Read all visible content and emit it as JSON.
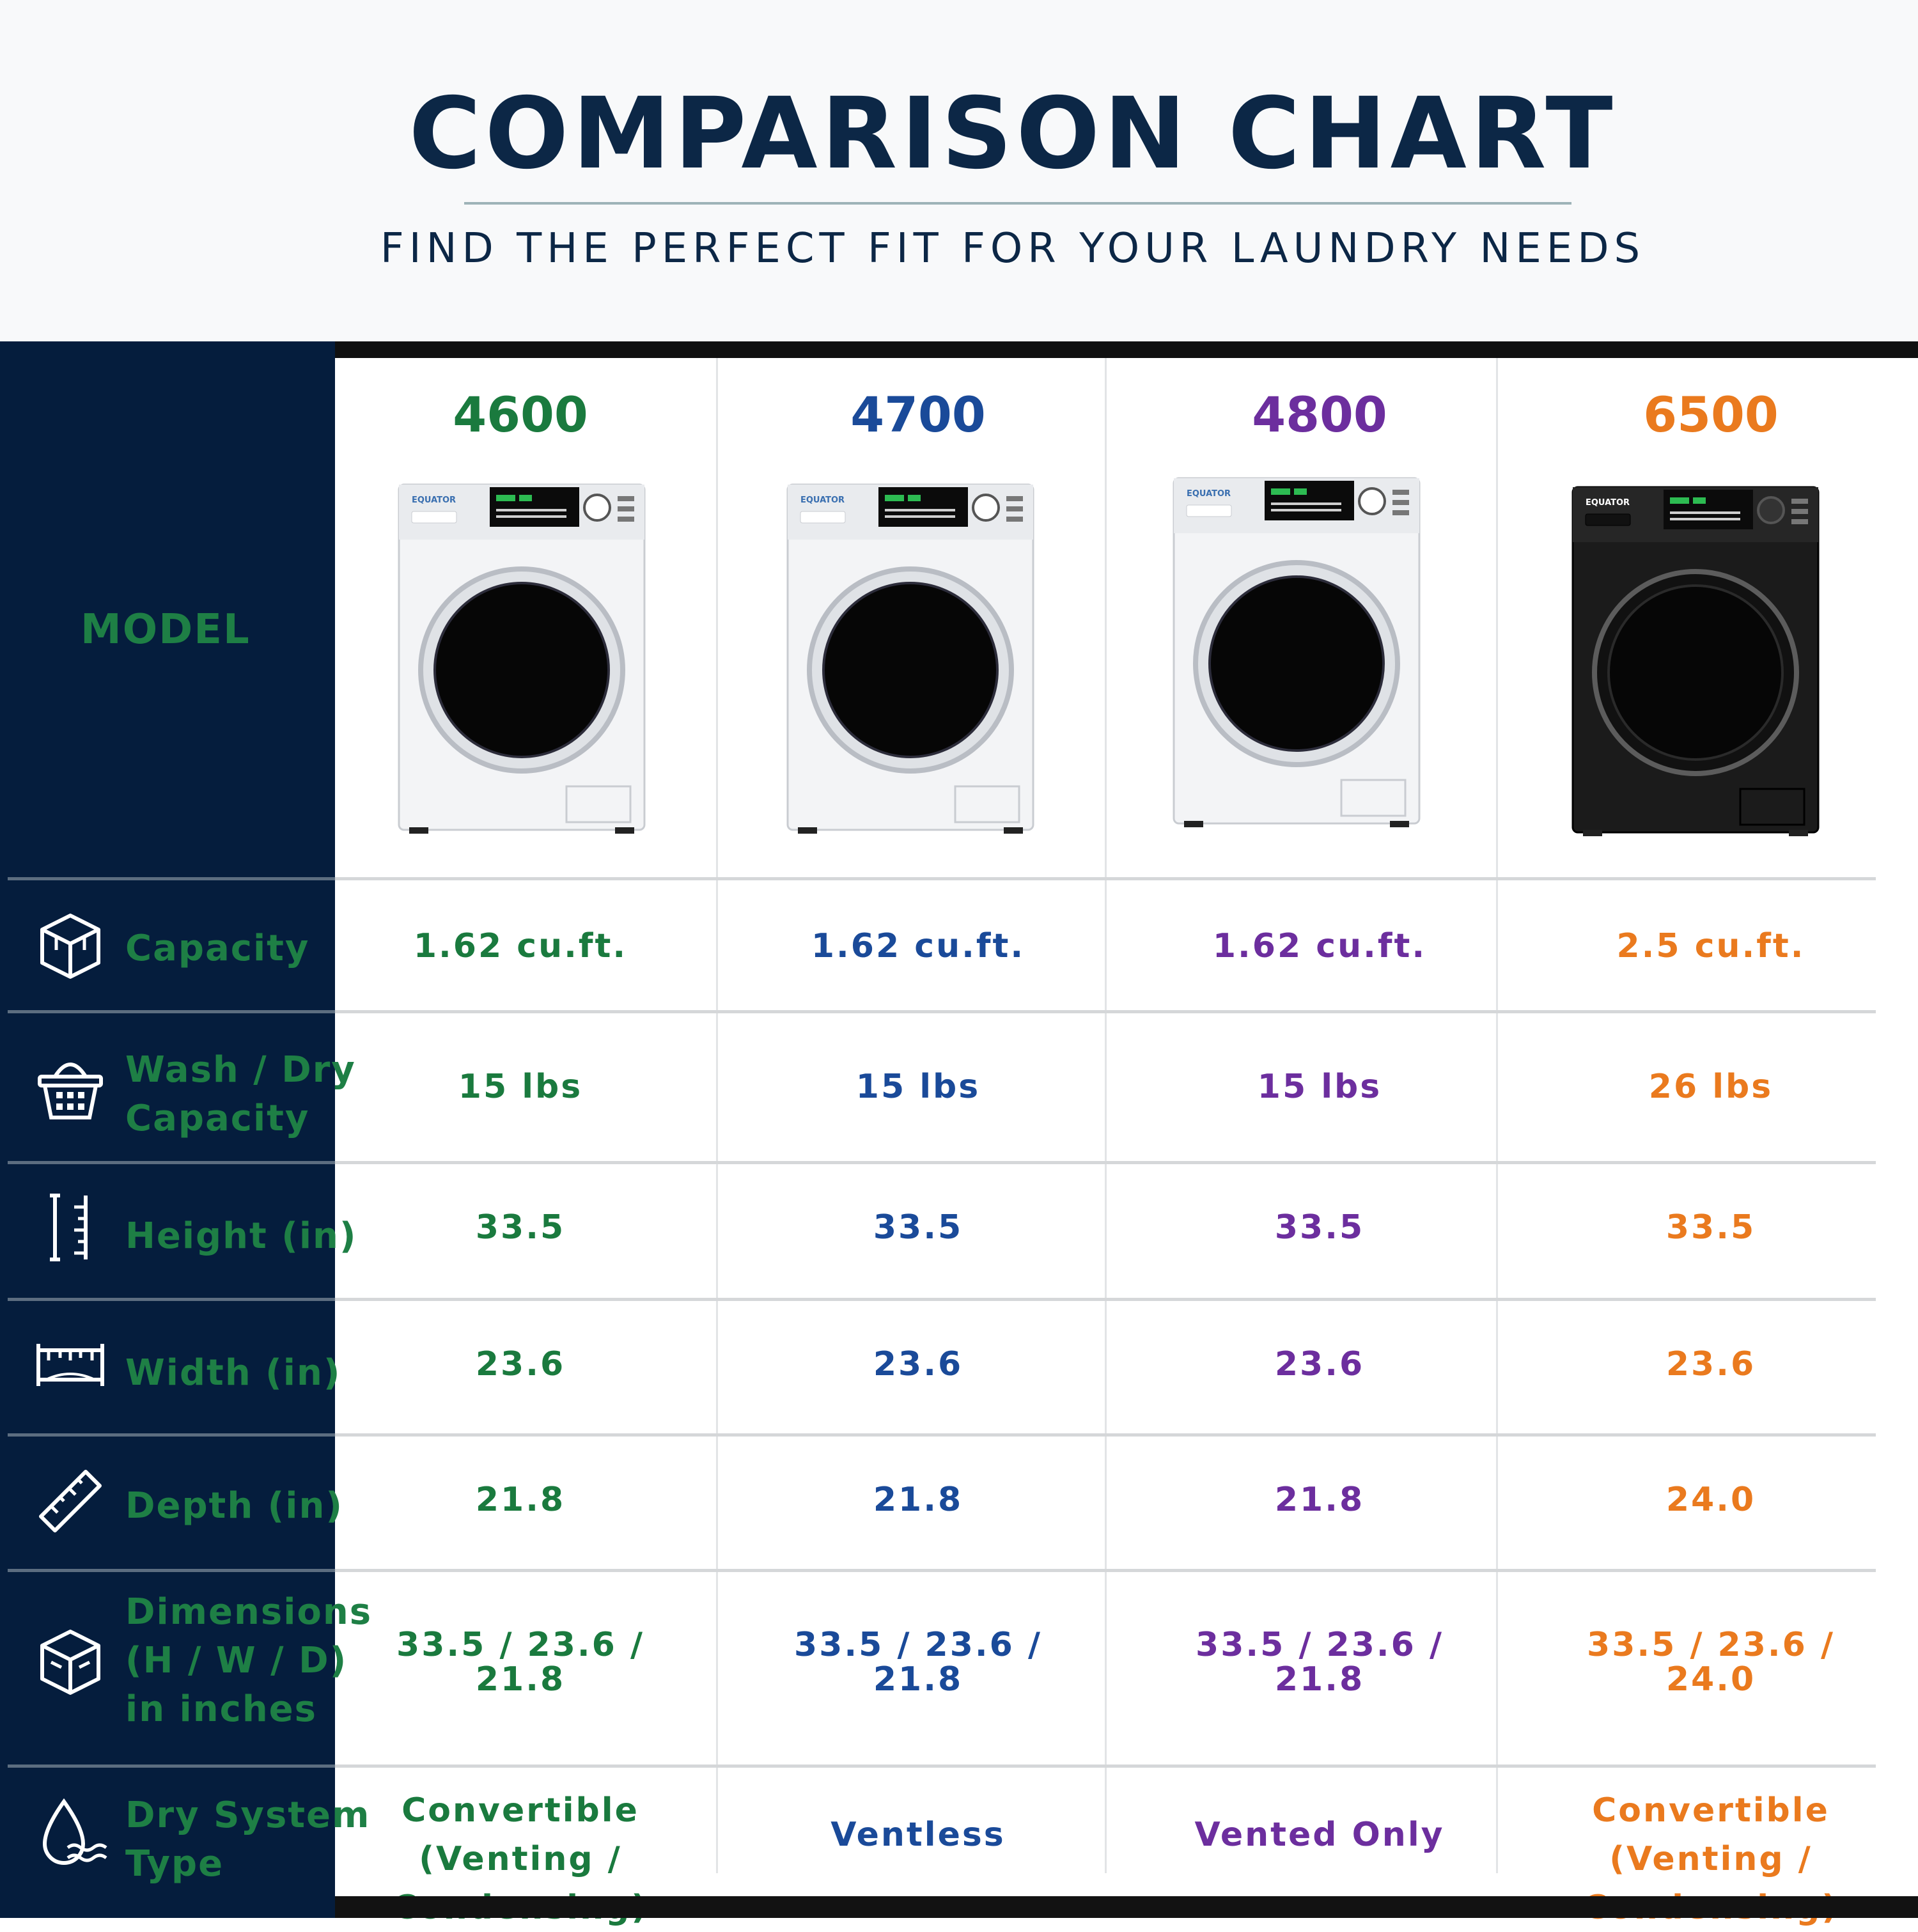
{
  "header": {
    "title": "COMPARISON CHART",
    "subtitle": "FIND THE PERFECT FIT FOR YOUR LAUNDRY NEEDS"
  },
  "sidebar": {
    "model_label": "MODEL",
    "rows": [
      {
        "label": "Capacity",
        "icon": "box-3d-icon"
      },
      {
        "label": "Wash / Dry\nCapacity",
        "icon": "laundry-basket-icon"
      },
      {
        "label": "Height (in)",
        "icon": "vertical-ruler-icon"
      },
      {
        "label": "Width (in)",
        "icon": "horizontal-ruler-icon"
      },
      {
        "label": "Depth (in)",
        "icon": "diagonal-ruler-icon"
      },
      {
        "label": "Dimensions\n(H / W / D)\nin inches",
        "icon": "cube-icon"
      },
      {
        "label": "Dry System\nType",
        "icon": "water-drop-icon"
      }
    ]
  },
  "models": [
    {
      "name": "4600",
      "color": "#1a7a3e",
      "finish": "white",
      "brand": "EQUATOR",
      "values": [
        "1.62 cu.ft.",
        "15 lbs",
        "33.5",
        "23.6",
        "21.8",
        "33.5 / 23.6 /\n21.8",
        "Convertible (Venting /\nCondensing)"
      ]
    },
    {
      "name": "4700",
      "color": "#1a4a99",
      "finish": "white",
      "brand": "EQUATOR",
      "values": [
        "1.62 cu.ft.",
        "15 lbs",
        "33.5",
        "23.6",
        "21.8",
        "33.5 / 23.6 /\n21.8",
        "Ventless"
      ]
    },
    {
      "name": "4800",
      "color": "#6c2e9e",
      "finish": "white",
      "brand": "EQUATOR",
      "values": [
        "1.62 cu.ft.",
        "15 lbs",
        "33.5",
        "23.6",
        "21.8",
        "33.5 / 23.6 /\n21.8",
        "Vented Only"
      ]
    },
    {
      "name": "6500",
      "color": "#ea7a1e",
      "finish": "black",
      "brand": "EQUATOR",
      "values": [
        "2.5 cu.ft.",
        "26 lbs",
        "33.5",
        "23.6",
        "24.0",
        "33.5 / 23.6 /\n24.0",
        "Convertible (Venting /\nCondensing)"
      ]
    }
  ]
}
